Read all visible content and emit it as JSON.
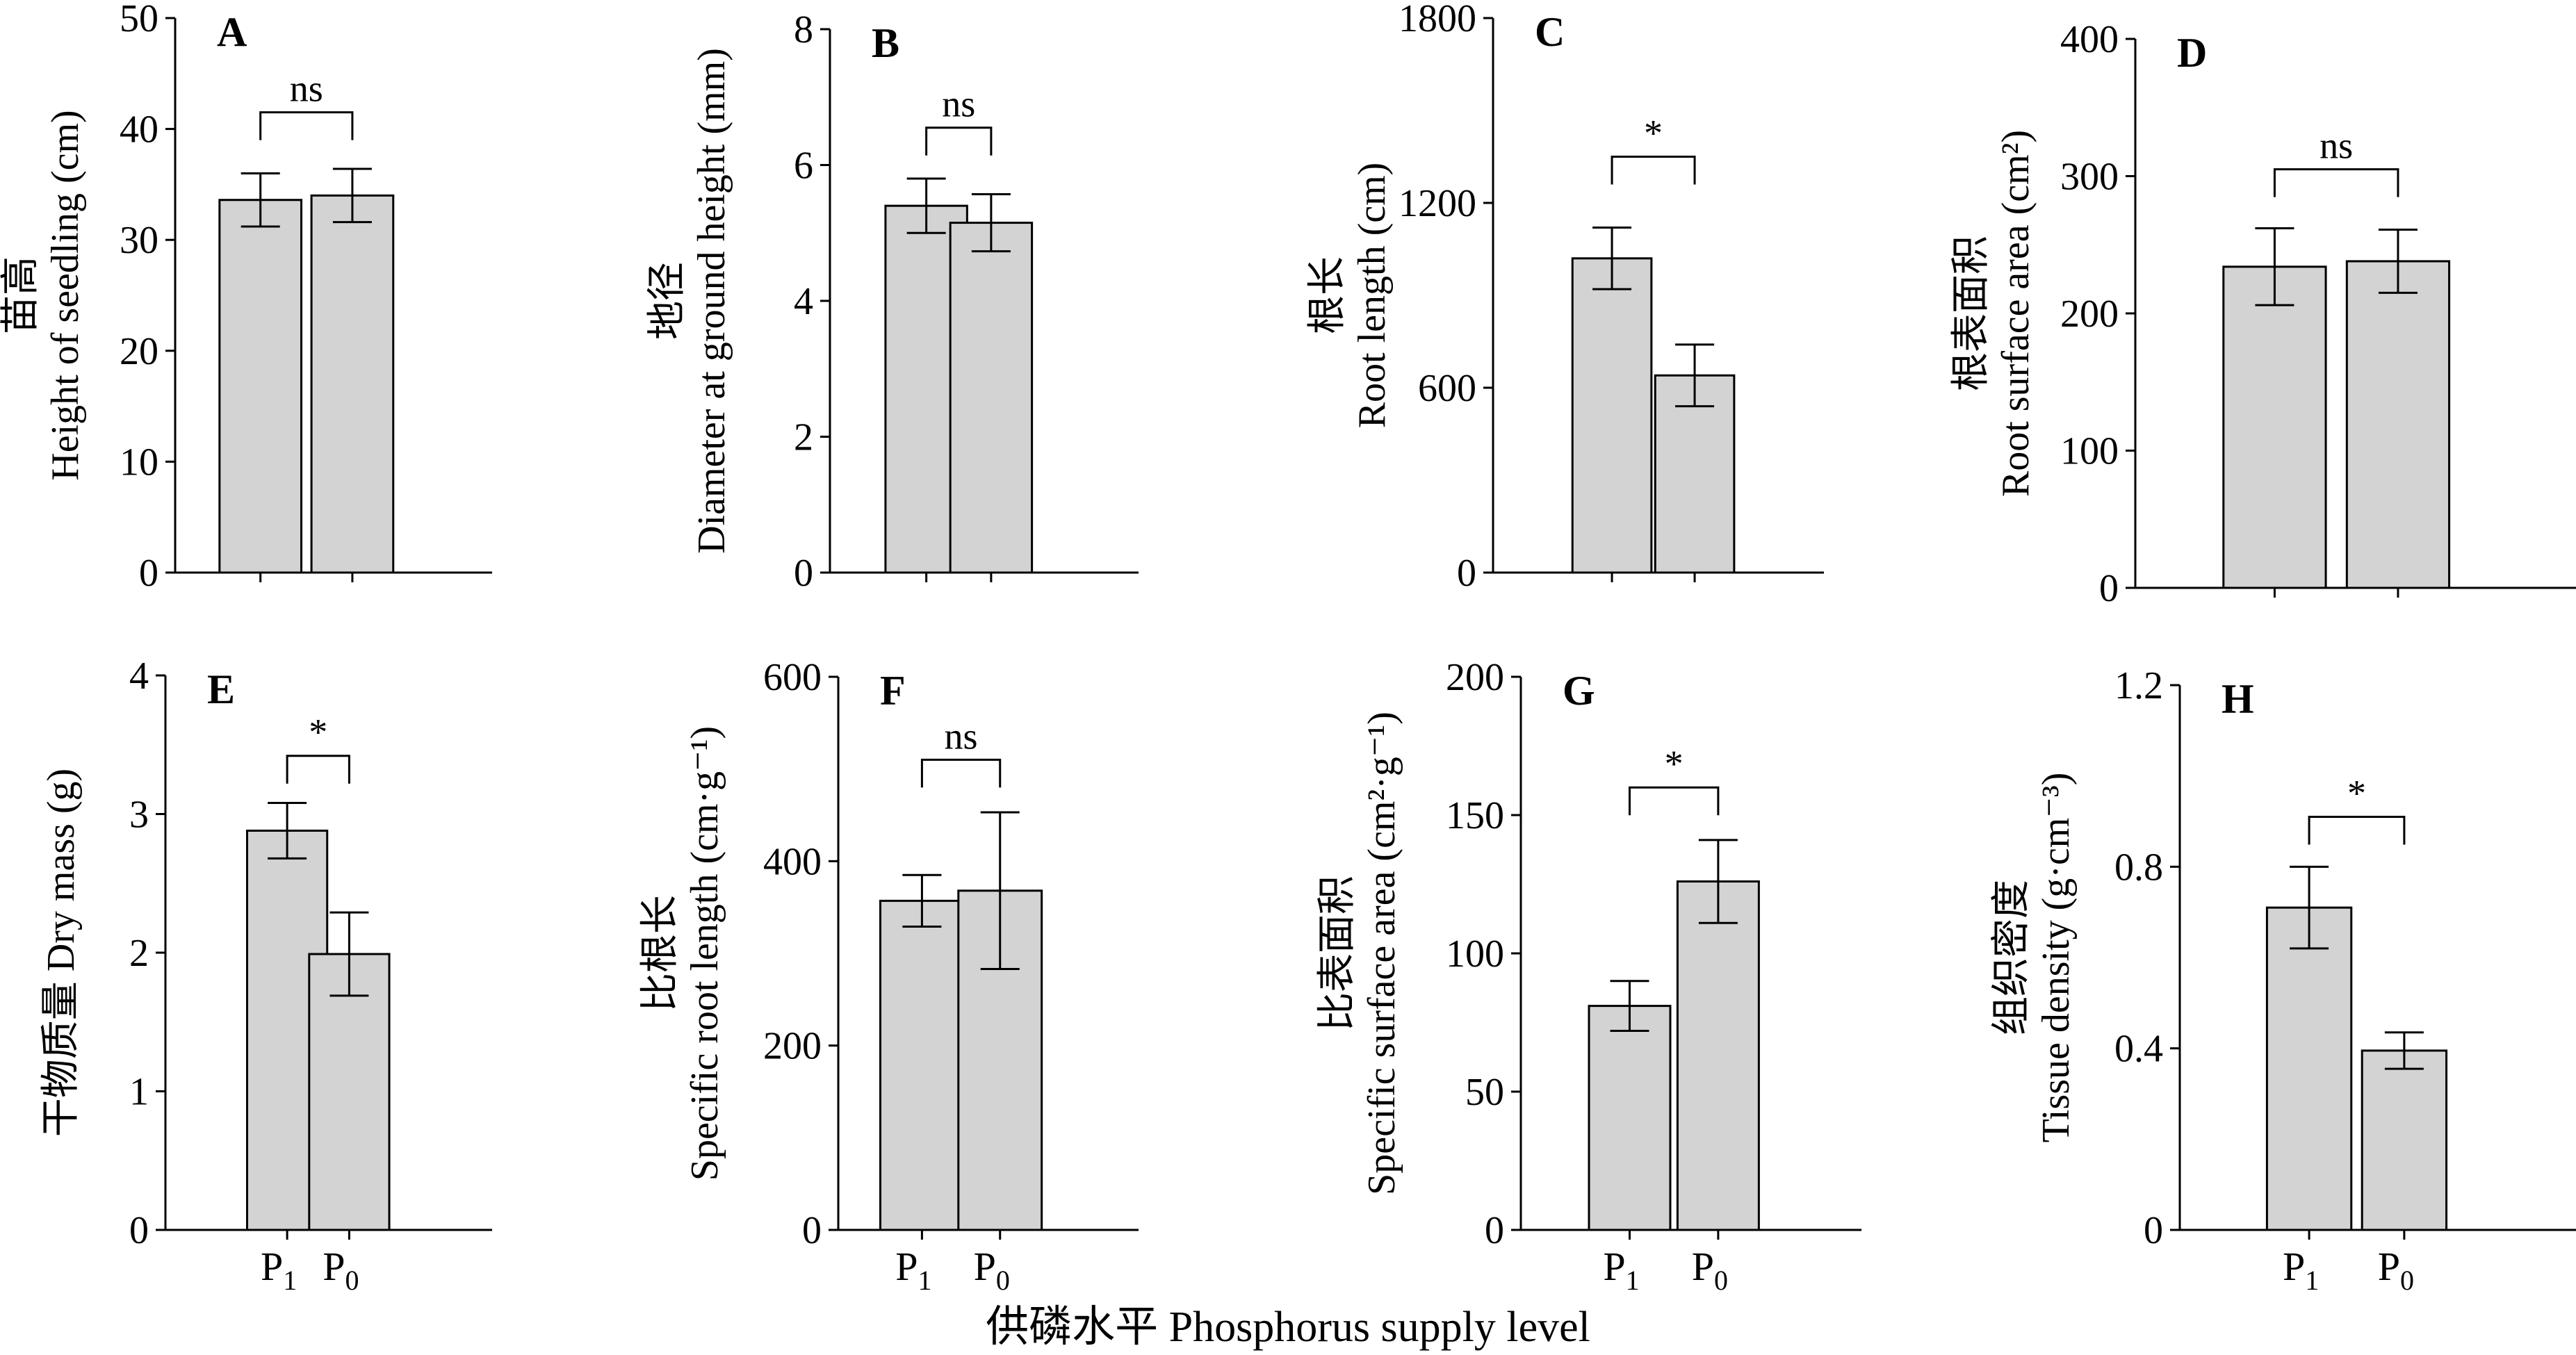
{
  "figure": {
    "xlabel": "供磷水平 Phosphorus supply level"
  },
  "colors": {
    "bar_fill": "#d3d3d3",
    "stroke": "#000000",
    "background": "#ffffff"
  },
  "chart_data": [
    {
      "id": "A",
      "type": "bar",
      "letter": "A",
      "ylabel_lines": [
        "苗高",
        "Height of seedling (cm)"
      ],
      "ylim": [
        0,
        50
      ],
      "yticks": [
        0,
        10,
        20,
        30,
        40,
        50
      ],
      "ytick_labels": [
        "0",
        "10",
        "20",
        "30",
        "40",
        "50"
      ],
      "categories": [
        {
          "main": "P",
          "sub": "1"
        },
        {
          "main": "P",
          "sub": "0"
        }
      ],
      "values": [
        33.6,
        34.0
      ],
      "err": [
        2.4,
        2.4
      ],
      "significance": "ns",
      "sig_level": 41.5,
      "show_xlabels": false
    },
    {
      "id": "B",
      "type": "bar",
      "letter": "B",
      "ylabel_lines": [
        "地径",
        "Diameter at ground height (mm)"
      ],
      "ylim": [
        0,
        8
      ],
      "yticks": [
        0,
        2,
        4,
        6,
        8
      ],
      "ytick_labels": [
        "0",
        "2",
        "4",
        "6",
        "8"
      ],
      "categories": [
        {
          "main": "P",
          "sub": "1"
        },
        {
          "main": "P",
          "sub": "0"
        }
      ],
      "values": [
        5.4,
        5.15
      ],
      "err": [
        0.4,
        0.42
      ],
      "significance": "ns",
      "sig_level": 6.55,
      "show_xlabels": false
    },
    {
      "id": "C",
      "type": "bar",
      "letter": "C",
      "ylabel_lines": [
        "根长",
        "Root length (cm)"
      ],
      "ylim": [
        0,
        1800
      ],
      "yticks": [
        0,
        600,
        1200,
        1800
      ],
      "ytick_labels": [
        "0",
        "600",
        "1200",
        "1800"
      ],
      "categories": [
        {
          "main": "P",
          "sub": "1"
        },
        {
          "main": "P",
          "sub": "0"
        }
      ],
      "values": [
        1020,
        640
      ],
      "err": [
        100,
        100
      ],
      "significance": "*",
      "sig_level": 1350,
      "show_xlabels": false
    },
    {
      "id": "D",
      "type": "bar",
      "letter": "D",
      "ylabel_lines": [
        "根表面积",
        "Root surface area (cm²)"
      ],
      "ylim": [
        0,
        400
      ],
      "yticks": [
        0,
        100,
        200,
        300,
        400
      ],
      "ytick_labels": [
        "0",
        "100",
        "200",
        "300",
        "400"
      ],
      "categories": [
        {
          "main": "P",
          "sub": "1"
        },
        {
          "main": "P",
          "sub": "0"
        }
      ],
      "values": [
        234,
        238
      ],
      "err": [
        28,
        23
      ],
      "significance": "ns",
      "sig_level": 305,
      "show_xlabels": false
    },
    {
      "id": "E",
      "type": "bar",
      "letter": "E",
      "ylabel_lines": [
        "干物质量 Dry mass (g)"
      ],
      "ylim": [
        0,
        4
      ],
      "yticks": [
        0,
        1,
        2,
        3,
        4
      ],
      "ytick_labels": [
        "0",
        "1",
        "2",
        "3",
        "4"
      ],
      "categories": [
        {
          "main": "P",
          "sub": "1"
        },
        {
          "main": "P",
          "sub": "0"
        }
      ],
      "values": [
        2.88,
        1.99
      ],
      "err": [
        0.2,
        0.3
      ],
      "significance": "*",
      "sig_level": 3.42,
      "show_xlabels": true
    },
    {
      "id": "F",
      "type": "bar",
      "letter": "F",
      "ylabel_lines": [
        "比根长",
        "Specific root length (cm·g⁻¹)"
      ],
      "ylim": [
        0,
        600
      ],
      "yticks": [
        0,
        200,
        400,
        600
      ],
      "ytick_labels": [
        "0",
        "200",
        "400",
        "600"
      ],
      "categories": [
        {
          "main": "P",
          "sub": "1"
        },
        {
          "main": "P",
          "sub": "0"
        }
      ],
      "values": [
        357,
        368
      ],
      "err": [
        28,
        85
      ],
      "significance": "ns",
      "sig_level": 510,
      "show_xlabels": true
    },
    {
      "id": "G",
      "type": "bar",
      "letter": "G",
      "ylabel_lines": [
        "比表面积",
        "Specific surface area (cm²·g⁻¹)"
      ],
      "ylim": [
        0,
        200
      ],
      "yticks": [
        0,
        50,
        100,
        150,
        200
      ],
      "ytick_labels": [
        "0",
        "50",
        "100",
        "150",
        "200"
      ],
      "categories": [
        {
          "main": "P",
          "sub": "1"
        },
        {
          "main": "P",
          "sub": "0"
        }
      ],
      "values": [
        81,
        126
      ],
      "err": [
        9,
        15
      ],
      "significance": "*",
      "sig_level": 160,
      "show_xlabels": true
    },
    {
      "id": "H",
      "type": "bar",
      "letter": "H",
      "ylabel_lines": [
        "组织密度",
        "Tissue density (g·cm⁻³)"
      ],
      "ylim": [
        0,
        1.2
      ],
      "yticks": [
        0,
        0.4,
        0.8,
        1.2
      ],
      "ytick_labels": [
        "0",
        "0.4",
        "0.8",
        "1.2"
      ],
      "categories": [
        {
          "main": "P",
          "sub": "1"
        },
        {
          "main": "P",
          "sub": "0"
        }
      ],
      "values": [
        0.71,
        0.395
      ],
      "err": [
        0.09,
        0.04
      ],
      "significance": "*",
      "sig_level": 0.91,
      "show_xlabels": true
    }
  ]
}
